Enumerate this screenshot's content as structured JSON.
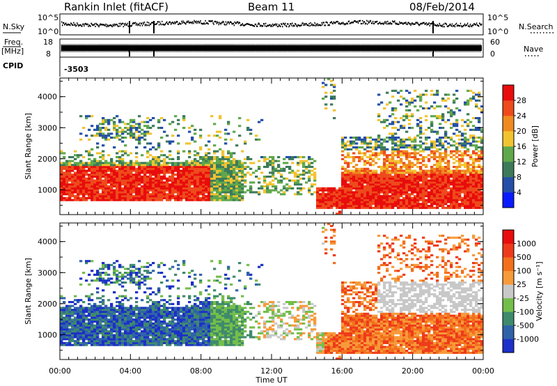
{
  "header": {
    "title": "Rankin Inlet (fitACF)",
    "beam": "Beam 11",
    "date": "08/Feb/2014"
  },
  "aux": {
    "nsky_label": "N.Sky",
    "nsky_ticks": [
      "10^5",
      "10^0"
    ],
    "nsearch_label": "N.Search",
    "nsearch_ticks": [
      "10^5",
      "10^0"
    ],
    "freq_label_1": "Freq.",
    "freq_label_2": "[MHz]",
    "freq_ticks": [
      "18",
      "8"
    ],
    "nave_label": "Nave",
    "nave_ticks": [
      "60",
      "0"
    ],
    "cpid_label": "CPID",
    "cpid_value": "-3503"
  },
  "chart_data": [
    {
      "type": "heatmap",
      "name": "power",
      "ylabel": "Slant Range [km]",
      "yticks": [
        "1000",
        "2000",
        "3000",
        "4000"
      ],
      "colorbar": {
        "label": "Power [dB]",
        "ticks": [
          "4",
          "8",
          "12",
          "16",
          "20",
          "24",
          "28"
        ],
        "colors": [
          "#0a1cff",
          "#244fa8",
          "#3d7a5a",
          "#5fa84a",
          "#f2c330",
          "#f08a20",
          "#ee4a1c",
          "#e80c0c"
        ]
      }
    },
    {
      "type": "heatmap",
      "name": "velocity",
      "ylabel": "Slant Range [km]",
      "yticks": [
        "1000",
        "2000",
        "3000",
        "4000"
      ],
      "colorbar": {
        "label": "Velocity [m s⁻¹]",
        "ticks": [
          "1000",
          "500",
          "100",
          "25",
          "-25",
          "-100",
          "-500",
          "-1000"
        ],
        "colors": [
          "#1c2fc8",
          "#2f63a8",
          "#3f8a6c",
          "#74be4a",
          "#c8c8c8",
          "#f79a3a",
          "#f2701c",
          "#ee3a1a",
          "#e80c0c"
        ]
      }
    }
  ],
  "xaxis": {
    "label": "Time UT",
    "ticks": [
      "00:00",
      "04:00",
      "08:00",
      "12:00",
      "16:00",
      "20:00",
      "00:00"
    ]
  },
  "colors": {
    "axis": "#000000",
    "background": "#ffffff"
  }
}
